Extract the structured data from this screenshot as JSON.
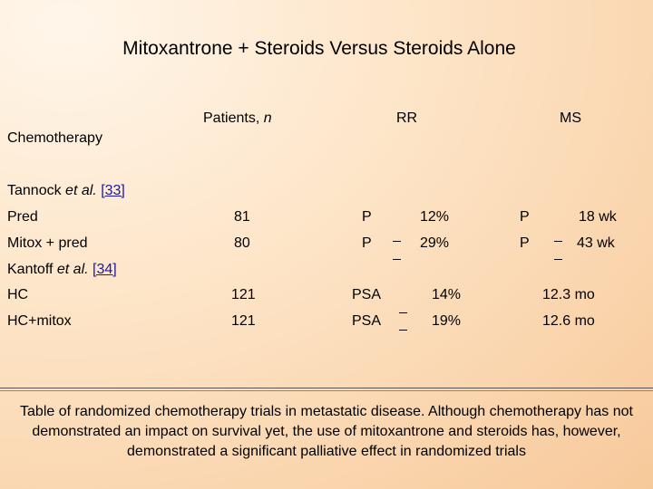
{
  "title": "Mitoxantrone + Steroids Versus Steroids Alone",
  "headers": {
    "patients": "Patients,",
    "patients_n": "n",
    "rr": "RR",
    "ms": "MS"
  },
  "section_label": "Chemotherapy",
  "study1": {
    "name": "Tannock",
    "etal": "et al.",
    "ref": "[33]",
    "rows": [
      {
        "arm": "Pred",
        "n": "81",
        "rr_type": "P",
        "rr": "12%",
        "ms_type": "P",
        "ms": "18 wk"
      },
      {
        "arm": "Mitox + pred",
        "n": "80",
        "rr_type": "P",
        "rr": "29%",
        "ms_type": "P",
        "ms": "43 wk"
      }
    ]
  },
  "study2": {
    "name": "Kantoff",
    "etal": "et al.",
    "ref": "[34]",
    "rows": [
      {
        "arm": "HC",
        "n": "121",
        "rr_type": "PSA",
        "rr": "14%",
        "ms": "12.3 mo"
      },
      {
        "arm": "HC+mitox",
        "n": "121",
        "rr_type": "PSA",
        "rr": "19%",
        "ms": "12.6 mo"
      }
    ]
  },
  "caption": "Table of randomized chemotherapy trials in metastatic disease. Although chemotherapy has not demonstrated an impact on survival yet, the use of mitoxantrone and steroids has, however, demonstrated a significant palliative effect in randomized trials"
}
